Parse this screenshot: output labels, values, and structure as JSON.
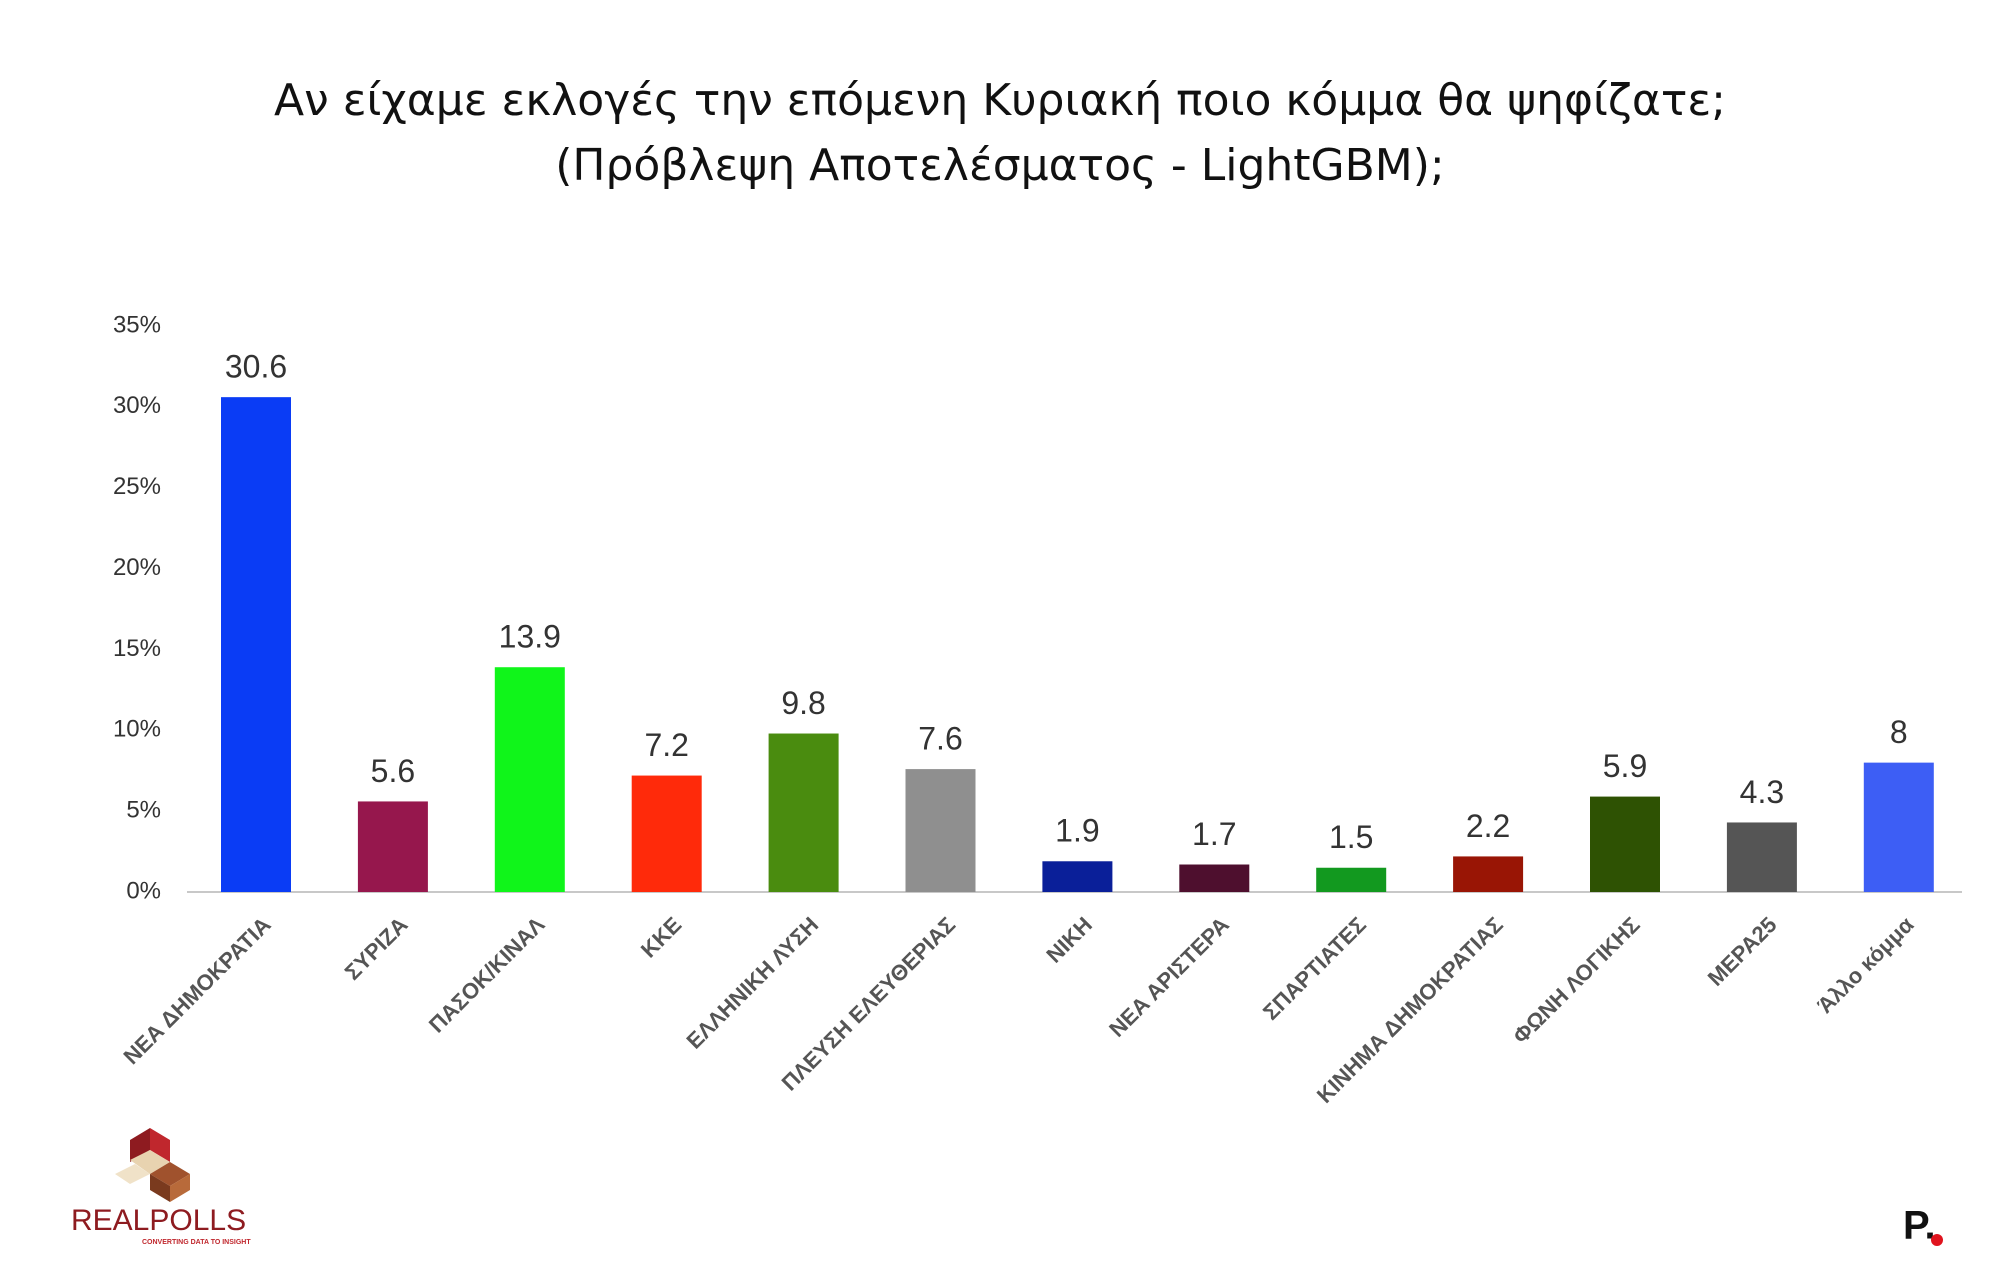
{
  "chart_data": {
    "type": "bar",
    "title": "Αν είχαμε εκλογές την επόμενη Κυριακή ποιο κόμμα θα ψηφίζατε;",
    "subtitle": "(Πρόβλεψη Αποτελέσματος - LightGBM);",
    "categories": [
      "ΝΕΑ ΔΗΜΟΚΡΑΤΙΑ",
      "ΣΥΡΙΖΑ",
      "ΠΑΣΟΚ/ΚΙΝΑΛ",
      "ΚΚΕ",
      "ΕΛΛΗΝΙΚΗ ΛΥΣΗ",
      "ΠΛΕΥΣΗ ΕΛΕΥΘΕΡΙΑΣ",
      "ΝΙΚΗ",
      "ΝΕΑ ΑΡΙΣΤΕΡΑ",
      "ΣΠΑΡΤΙΑΤΕΣ",
      "ΚΙΝΗΜΑ ΔΗΜΟΚΡΑΤΙΑΣ",
      "ΦΩΝΗ ΛΟΓΙΚΗΣ",
      "ΜΕΡΑ25",
      "Άλλο κόμμα"
    ],
    "values": [
      30.6,
      5.6,
      13.9,
      7.2,
      9.8,
      7.6,
      1.9,
      1.7,
      1.5,
      2.2,
      5.9,
      4.3,
      8
    ],
    "colors": [
      "#0a3cf5",
      "#96174d",
      "#10f51a",
      "#ff2a0a",
      "#4a8c0f",
      "#8f8f8f",
      "#0a1f99",
      "#4e0f2e",
      "#12991f",
      "#991505",
      "#2e5203",
      "#555555",
      "#3d5ef5"
    ],
    "ylim": [
      0,
      35
    ],
    "yticks": [
      {
        "value": 0,
        "label": "0%"
      },
      {
        "value": 5,
        "label": "5%"
      },
      {
        "value": 10,
        "label": "10%"
      },
      {
        "value": 15,
        "label": "15%"
      },
      {
        "value": 20,
        "label": "20%"
      },
      {
        "value": 25,
        "label": "25%"
      },
      {
        "value": 30,
        "label": "30%"
      },
      {
        "value": 35,
        "label": "35%"
      }
    ],
    "grid": false
  },
  "logo": {
    "name": "REALPOLLS",
    "tagline": "CONVERTING DATA TO INSIGHT"
  },
  "publisher_mark": "P."
}
